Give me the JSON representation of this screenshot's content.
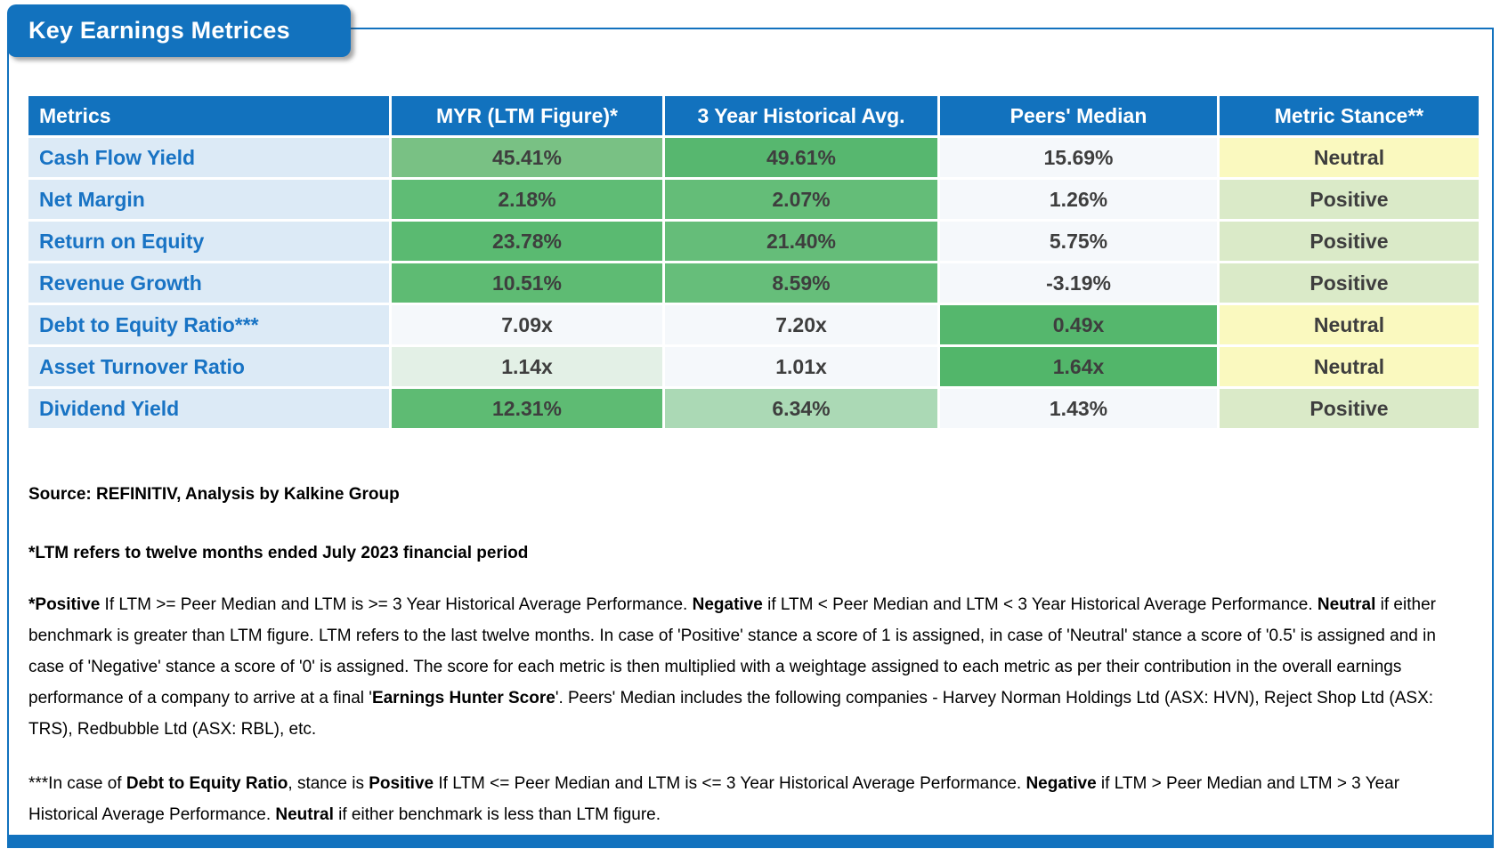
{
  "title": "Key Earnings Metrices",
  "colors": {
    "accent_blue": "#1272BE",
    "label_bg": "#DCEAF6",
    "label_text": "#1873C4",
    "value_text": "#3E3E3E",
    "neutral_bg": "#FAF9BF",
    "positive_bg": "#DAEAC8",
    "plain_bg": "#F5F8FB"
  },
  "table": {
    "headers": [
      "Metrics",
      "MYR (LTM Figure)*",
      "3 Year Historical Avg.",
      "Peers' Median",
      "Metric Stance**"
    ],
    "rows": [
      {
        "metric": "Cash Flow Yield",
        "ltm": {
          "v": "45.41%",
          "bg": "#79C184"
        },
        "hist": {
          "v": "49.61%",
          "bg": "#57B76F"
        },
        "peers": {
          "v": "15.69%",
          "bg": "#F5F8FB"
        },
        "stance": {
          "v": "Neutral",
          "bg": "#FAF9BF"
        }
      },
      {
        "metric": "Net Margin",
        "ltm": {
          "v": "2.18%",
          "bg": "#5FBC75"
        },
        "hist": {
          "v": "2.07%",
          "bg": "#64BD78"
        },
        "peers": {
          "v": "1.26%",
          "bg": "#F5F8FB"
        },
        "stance": {
          "v": "Positive",
          "bg": "#DAEAC8"
        }
      },
      {
        "metric": "Return on Equity",
        "ltm": {
          "v": "23.78%",
          "bg": "#5ABA71"
        },
        "hist": {
          "v": "21.40%",
          "bg": "#65BD79"
        },
        "peers": {
          "v": "5.75%",
          "bg": "#F5F8FB"
        },
        "stance": {
          "v": "Positive",
          "bg": "#DAEAC8"
        }
      },
      {
        "metric": "Revenue Growth",
        "ltm": {
          "v": "10.51%",
          "bg": "#5EBB73"
        },
        "hist": {
          "v": "8.59%",
          "bg": "#66BE7A"
        },
        "peers": {
          "v": "-3.19%",
          "bg": "#F5F8FB"
        },
        "stance": {
          "v": "Positive",
          "bg": "#DAEAC8"
        }
      },
      {
        "metric": "Debt to Equity Ratio***",
        "ltm": {
          "v": "7.09x",
          "bg": "#F5F8FB"
        },
        "hist": {
          "v": "7.20x",
          "bg": "#F5F8FB"
        },
        "peers": {
          "v": "0.49x",
          "bg": "#55B76D"
        },
        "stance": {
          "v": "Neutral",
          "bg": "#FAF9BF"
        }
      },
      {
        "metric": "Asset Turnover Ratio",
        "ltm": {
          "v": "1.14x",
          "bg": "#E3F0E6"
        },
        "hist": {
          "v": "1.01x",
          "bg": "#F5F8FB"
        },
        "peers": {
          "v": "1.64x",
          "bg": "#52B66A"
        },
        "stance": {
          "v": "Neutral",
          "bg": "#FAF9BF"
        }
      },
      {
        "metric": "Dividend Yield",
        "ltm": {
          "v": "12.31%",
          "bg": "#5EBB73"
        },
        "hist": {
          "v": "6.34%",
          "bg": "#ABD9B5"
        },
        "peers": {
          "v": "1.43%",
          "bg": "#F5F8FB"
        },
        "stance": {
          "v": "Positive",
          "bg": "#DAEAC8"
        }
      }
    ]
  },
  "footnotes": {
    "source": "Source: REFINITIV, Analysis by Kalkine Group",
    "ltm_note": "*LTM refers to twelve months ended July 2023 financial period",
    "para1": [
      {
        "t": "*Positive",
        "b": 1
      },
      {
        "t": " If LTM >= Peer Median and LTM is >= 3 Year Historical Average Performance. "
      },
      {
        "t": "Negative",
        "b": 1
      },
      {
        "t": " if LTM < Peer Median and LTM < 3 Year Historical Average Performance. "
      },
      {
        "t": "Neutral",
        "b": 1
      },
      {
        "t": " if either benchmark is greater than LTM figure. LTM refers to the last twelve months. In case of 'Positive' stance a score of 1 is assigned, in case of 'Neutral' stance a score of '0.5' is assigned and in case of 'Negative' stance a score of '0' is assigned. The score for each metric is then multiplied with a weightage assigned to each metric as per their contribution in the overall earnings performance of a company to arrive at a final '"
      },
      {
        "t": "Earnings Hunter Score",
        "b": 1
      },
      {
        "t": "'. Peers' Median includes the following companies - Harvey Norman Holdings Ltd (ASX: HVN), Reject Shop Ltd (ASX: TRS), Redbubble Ltd (ASX: RBL), etc."
      }
    ],
    "para2": [
      {
        "t": "***In case of "
      },
      {
        "t": "Debt to Equity Ratio",
        "b": 1
      },
      {
        "t": ", stance is "
      },
      {
        "t": "Positive",
        "b": 1
      },
      {
        "t": " If LTM <= Peer Median and LTM is <= 3 Year Historical Average Performance. "
      },
      {
        "t": "Negative",
        "b": 1
      },
      {
        "t": " if LTM > Peer Median and LTM > 3 Year Historical Average Performance. "
      },
      {
        "t": "Neutral",
        "b": 1
      },
      {
        "t": " if either benchmark is less than LTM figure."
      }
    ]
  }
}
